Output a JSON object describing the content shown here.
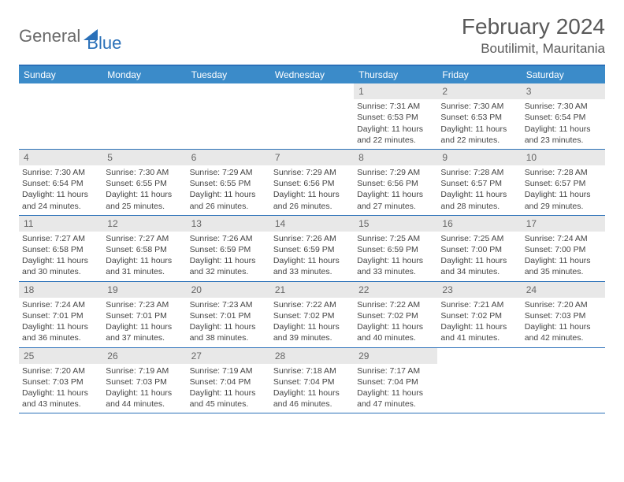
{
  "logo": {
    "part1": "General",
    "part2": "Blue"
  },
  "title": "February 2024",
  "location": "Boutilimit, Mauritania",
  "colors": {
    "header_bg": "#3b8bc9",
    "border": "#2a70b8",
    "daynum_bg": "#e8e8e8",
    "text": "#444444"
  },
  "weekdays": [
    "Sunday",
    "Monday",
    "Tuesday",
    "Wednesday",
    "Thursday",
    "Friday",
    "Saturday"
  ],
  "weeks": [
    [
      null,
      null,
      null,
      null,
      {
        "n": "1",
        "sr": "Sunrise: 7:31 AM",
        "ss": "Sunset: 6:53 PM",
        "dl1": "Daylight: 11 hours",
        "dl2": "and 22 minutes."
      },
      {
        "n": "2",
        "sr": "Sunrise: 7:30 AM",
        "ss": "Sunset: 6:53 PM",
        "dl1": "Daylight: 11 hours",
        "dl2": "and 22 minutes."
      },
      {
        "n": "3",
        "sr": "Sunrise: 7:30 AM",
        "ss": "Sunset: 6:54 PM",
        "dl1": "Daylight: 11 hours",
        "dl2": "and 23 minutes."
      }
    ],
    [
      {
        "n": "4",
        "sr": "Sunrise: 7:30 AM",
        "ss": "Sunset: 6:54 PM",
        "dl1": "Daylight: 11 hours",
        "dl2": "and 24 minutes."
      },
      {
        "n": "5",
        "sr": "Sunrise: 7:30 AM",
        "ss": "Sunset: 6:55 PM",
        "dl1": "Daylight: 11 hours",
        "dl2": "and 25 minutes."
      },
      {
        "n": "6",
        "sr": "Sunrise: 7:29 AM",
        "ss": "Sunset: 6:55 PM",
        "dl1": "Daylight: 11 hours",
        "dl2": "and 26 minutes."
      },
      {
        "n": "7",
        "sr": "Sunrise: 7:29 AM",
        "ss": "Sunset: 6:56 PM",
        "dl1": "Daylight: 11 hours",
        "dl2": "and 26 minutes."
      },
      {
        "n": "8",
        "sr": "Sunrise: 7:29 AM",
        "ss": "Sunset: 6:56 PM",
        "dl1": "Daylight: 11 hours",
        "dl2": "and 27 minutes."
      },
      {
        "n": "9",
        "sr": "Sunrise: 7:28 AM",
        "ss": "Sunset: 6:57 PM",
        "dl1": "Daylight: 11 hours",
        "dl2": "and 28 minutes."
      },
      {
        "n": "10",
        "sr": "Sunrise: 7:28 AM",
        "ss": "Sunset: 6:57 PM",
        "dl1": "Daylight: 11 hours",
        "dl2": "and 29 minutes."
      }
    ],
    [
      {
        "n": "11",
        "sr": "Sunrise: 7:27 AM",
        "ss": "Sunset: 6:58 PM",
        "dl1": "Daylight: 11 hours",
        "dl2": "and 30 minutes."
      },
      {
        "n": "12",
        "sr": "Sunrise: 7:27 AM",
        "ss": "Sunset: 6:58 PM",
        "dl1": "Daylight: 11 hours",
        "dl2": "and 31 minutes."
      },
      {
        "n": "13",
        "sr": "Sunrise: 7:26 AM",
        "ss": "Sunset: 6:59 PM",
        "dl1": "Daylight: 11 hours",
        "dl2": "and 32 minutes."
      },
      {
        "n": "14",
        "sr": "Sunrise: 7:26 AM",
        "ss": "Sunset: 6:59 PM",
        "dl1": "Daylight: 11 hours",
        "dl2": "and 33 minutes."
      },
      {
        "n": "15",
        "sr": "Sunrise: 7:25 AM",
        "ss": "Sunset: 6:59 PM",
        "dl1": "Daylight: 11 hours",
        "dl2": "and 33 minutes."
      },
      {
        "n": "16",
        "sr": "Sunrise: 7:25 AM",
        "ss": "Sunset: 7:00 PM",
        "dl1": "Daylight: 11 hours",
        "dl2": "and 34 minutes."
      },
      {
        "n": "17",
        "sr": "Sunrise: 7:24 AM",
        "ss": "Sunset: 7:00 PM",
        "dl1": "Daylight: 11 hours",
        "dl2": "and 35 minutes."
      }
    ],
    [
      {
        "n": "18",
        "sr": "Sunrise: 7:24 AM",
        "ss": "Sunset: 7:01 PM",
        "dl1": "Daylight: 11 hours",
        "dl2": "and 36 minutes."
      },
      {
        "n": "19",
        "sr": "Sunrise: 7:23 AM",
        "ss": "Sunset: 7:01 PM",
        "dl1": "Daylight: 11 hours",
        "dl2": "and 37 minutes."
      },
      {
        "n": "20",
        "sr": "Sunrise: 7:23 AM",
        "ss": "Sunset: 7:01 PM",
        "dl1": "Daylight: 11 hours",
        "dl2": "and 38 minutes."
      },
      {
        "n": "21",
        "sr": "Sunrise: 7:22 AM",
        "ss": "Sunset: 7:02 PM",
        "dl1": "Daylight: 11 hours",
        "dl2": "and 39 minutes."
      },
      {
        "n": "22",
        "sr": "Sunrise: 7:22 AM",
        "ss": "Sunset: 7:02 PM",
        "dl1": "Daylight: 11 hours",
        "dl2": "and 40 minutes."
      },
      {
        "n": "23",
        "sr": "Sunrise: 7:21 AM",
        "ss": "Sunset: 7:02 PM",
        "dl1": "Daylight: 11 hours",
        "dl2": "and 41 minutes."
      },
      {
        "n": "24",
        "sr": "Sunrise: 7:20 AM",
        "ss": "Sunset: 7:03 PM",
        "dl1": "Daylight: 11 hours",
        "dl2": "and 42 minutes."
      }
    ],
    [
      {
        "n": "25",
        "sr": "Sunrise: 7:20 AM",
        "ss": "Sunset: 7:03 PM",
        "dl1": "Daylight: 11 hours",
        "dl2": "and 43 minutes."
      },
      {
        "n": "26",
        "sr": "Sunrise: 7:19 AM",
        "ss": "Sunset: 7:03 PM",
        "dl1": "Daylight: 11 hours",
        "dl2": "and 44 minutes."
      },
      {
        "n": "27",
        "sr": "Sunrise: 7:19 AM",
        "ss": "Sunset: 7:04 PM",
        "dl1": "Daylight: 11 hours",
        "dl2": "and 45 minutes."
      },
      {
        "n": "28",
        "sr": "Sunrise: 7:18 AM",
        "ss": "Sunset: 7:04 PM",
        "dl1": "Daylight: 11 hours",
        "dl2": "and 46 minutes."
      },
      {
        "n": "29",
        "sr": "Sunrise: 7:17 AM",
        "ss": "Sunset: 7:04 PM",
        "dl1": "Daylight: 11 hours",
        "dl2": "and 47 minutes."
      },
      null,
      null
    ]
  ]
}
